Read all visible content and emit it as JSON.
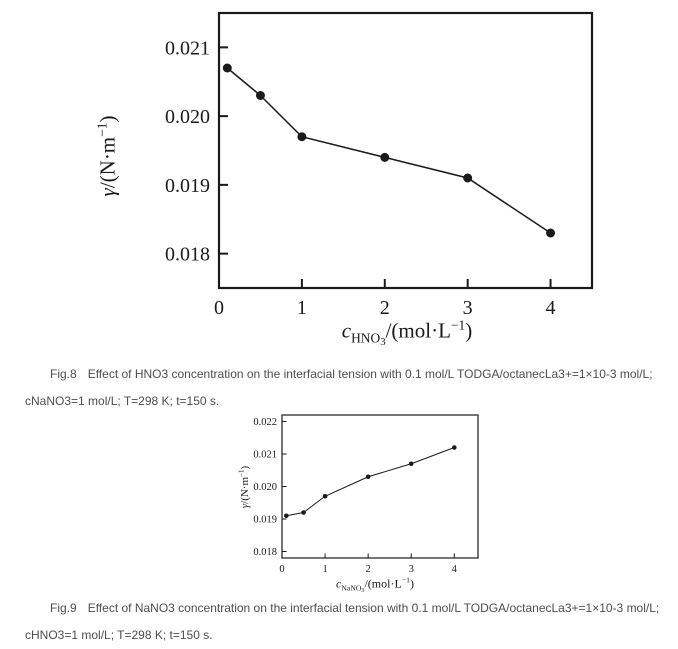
{
  "page": {
    "background": "#ffffff",
    "text_color": "#4d4d4d",
    "plot_ink_color": "#1a1a1a"
  },
  "figures": {
    "fig8": {
      "label": "Fig.8",
      "caption_line1": "Effect of HNO3 concentration on the interfacial tension with 0.1 mol/L TODGA/octanecLa3+=1×10-3 mol/L;",
      "caption_line2": "cNaNO3=1 mol/L; T=298 K; t=150 s."
    },
    "fig9": {
      "label": "Fig.9",
      "caption_line1": "Effect of NaNO3 concentration on the interfacial tension with 0.1 mol/L TODGA/octanecLa3+=1×10-3 mol/L;",
      "caption_line2": "cHNO3=1 mol/L; T=298 K; t=150 s."
    }
  },
  "chart_data": [
    {
      "id": "fig8",
      "type": "line",
      "title": "",
      "xlabel": "cHNO3/(mol·L−1)",
      "ylabel": "γ/(N·m−1)",
      "xlabel_parts": {
        "var": "c",
        "sub": "HNO",
        "subsub": "3",
        "mid": "/(mol·L",
        "sup": "−1",
        "end": ")"
      },
      "ylabel_parts": {
        "var": "γ",
        "mid": "/(N·m",
        "sup": "−1",
        "end": ")"
      },
      "x": [
        0.1,
        0.5,
        1.0,
        2.0,
        3.0,
        4.0
      ],
      "y": [
        0.0207,
        0.0203,
        0.0197,
        0.0194,
        0.0191,
        0.0183
      ],
      "xticks": [
        0,
        1,
        2,
        3,
        4
      ],
      "yticks": [
        0.018,
        0.019,
        0.02,
        0.021
      ],
      "xlim": [
        0,
        4.5
      ],
      "ylim": [
        0.0175,
        0.0215
      ],
      "grid": false,
      "legend": null,
      "marker": "circle",
      "line_color": "#1a1a1a"
    },
    {
      "id": "fig9",
      "type": "line",
      "title": "",
      "xlabel": "cNaNO3/(mol·L−1)",
      "ylabel": "γ/(N·m−1)",
      "xlabel_parts": {
        "var": "c",
        "sub": "NaNO",
        "subsub": "3",
        "mid": "/(mol·L",
        "sup": "−1",
        "end": ")"
      },
      "ylabel_parts": {
        "var": "γ",
        "mid": "/(N·m",
        "sup": "−1",
        "end": ")"
      },
      "x": [
        0.1,
        0.5,
        1.0,
        2.0,
        3.0,
        4.0
      ],
      "y": [
        0.0191,
        0.0192,
        0.0197,
        0.0203,
        0.0207,
        0.0212
      ],
      "xticks": [
        0,
        1,
        2,
        3,
        4
      ],
      "yticks": [
        0.018,
        0.019,
        0.02,
        0.021,
        0.022
      ],
      "xlim": [
        0,
        4.55
      ],
      "ylim": [
        0.0178,
        0.0222
      ],
      "grid": false,
      "legend": null,
      "marker": "circle",
      "line_color": "#1a1a1a"
    }
  ]
}
